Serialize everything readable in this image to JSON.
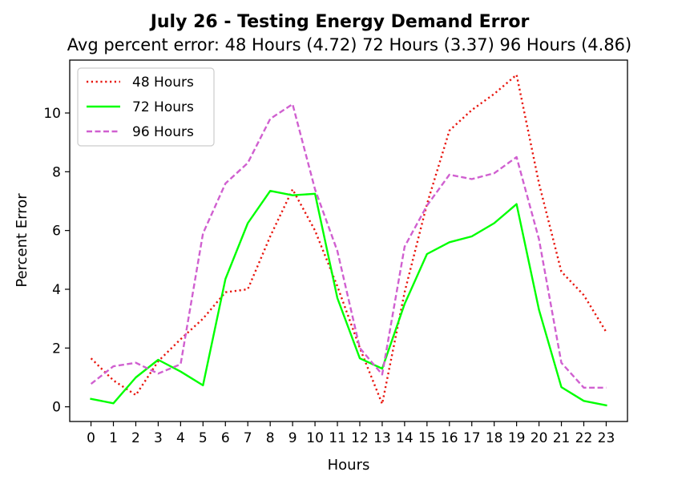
{
  "chart_data": {
    "type": "line",
    "title": "July 26 - Testing Energy Demand Error",
    "subtitle": "Avg percent error: 48 Hours (4.72) 72 Hours (3.37) 96 Hours (4.86)",
    "xlabel": "Hours",
    "ylabel": "Percent Error",
    "x": [
      0,
      1,
      2,
      3,
      4,
      5,
      6,
      7,
      8,
      9,
      10,
      11,
      12,
      13,
      14,
      15,
      16,
      17,
      18,
      19,
      20,
      21,
      22,
      23
    ],
    "xlim": [
      -0.95,
      23.95
    ],
    "ylim": [
      -0.5,
      11.8
    ],
    "yticks": [
      0,
      2,
      4,
      6,
      8,
      10
    ],
    "grid": false,
    "legend_position": "top-left",
    "series": [
      {
        "name": "48 Hours",
        "color": "#e8150d",
        "style": "dotted",
        "values": [
          1.65,
          0.9,
          0.4,
          1.55,
          2.3,
          3.0,
          3.9,
          4.0,
          5.8,
          7.4,
          6.0,
          4.1,
          2.0,
          0.1,
          3.9,
          6.9,
          9.4,
          10.1,
          10.65,
          11.3,
          7.6,
          4.6,
          3.8,
          2.55
        ]
      },
      {
        "name": "72 Hours",
        "color": "#00ff00",
        "style": "solid",
        "values": [
          0.27,
          0.12,
          1.0,
          1.6,
          1.2,
          0.73,
          4.35,
          6.25,
          7.35,
          7.2,
          7.25,
          3.7,
          1.65,
          1.3,
          3.5,
          5.2,
          5.6,
          5.8,
          6.25,
          6.9,
          3.3,
          0.67,
          0.2,
          0.05
        ]
      },
      {
        "name": "96 Hours",
        "color": "#d060d0",
        "style": "dashed",
        "values": [
          0.78,
          1.38,
          1.5,
          1.13,
          1.45,
          5.9,
          7.6,
          8.3,
          9.8,
          10.3,
          7.4,
          5.3,
          2.0,
          1.1,
          5.45,
          6.85,
          7.9,
          7.75,
          7.95,
          8.5,
          5.7,
          1.5,
          0.65,
          0.65
        ]
      }
    ]
  }
}
